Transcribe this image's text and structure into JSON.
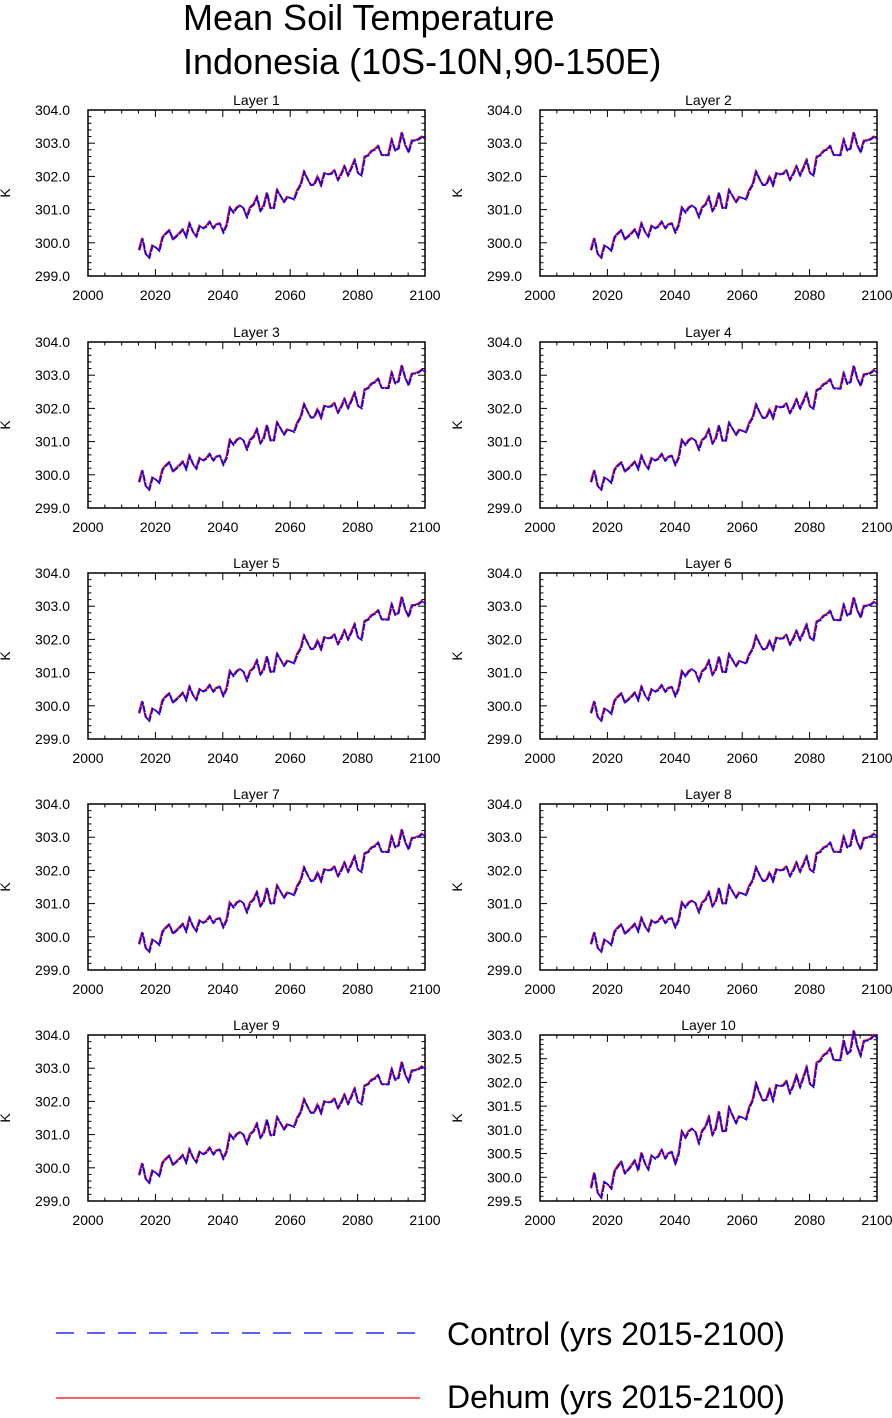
{
  "title": {
    "line1": "Mean Soil Temperature",
    "line2": "Indonesia (10S-10N,90-150E)"
  },
  "legend": {
    "control_label": "Control (yrs 2015-2100)",
    "dehum_label": "Dehum (yrs 2015-2100)",
    "control_color": "#0000ff",
    "dehum_color": "#ff0000"
  },
  "chart_data": [
    {
      "type": "line",
      "title": "Layer 1",
      "ylabel": "K",
      "xlim": [
        2000,
        2100
      ],
      "ylim": [
        299.0,
        304.0
      ],
      "yticks": [
        "299.0",
        "300.0",
        "301.0",
        "302.0",
        "303.0",
        "304.0"
      ],
      "xticks": [
        "2000",
        "2020",
        "2040",
        "2060",
        "2080",
        "2100"
      ],
      "x_start": 2015,
      "x_end": 2100,
      "y_start": 299.7,
      "y_end": 303.15
    },
    {
      "type": "line",
      "title": "Layer 2",
      "ylabel": "K",
      "xlim": [
        2000,
        2100
      ],
      "ylim": [
        299.0,
        304.0
      ],
      "yticks": [
        "299.0",
        "300.0",
        "301.0",
        "302.0",
        "303.0",
        "304.0"
      ],
      "xticks": [
        "2000",
        "2020",
        "2040",
        "2060",
        "2080",
        "2100"
      ],
      "x_start": 2015,
      "x_end": 2100,
      "y_start": 299.7,
      "y_end": 303.15
    },
    {
      "type": "line",
      "title": "Layer 3",
      "ylabel": "K",
      "xlim": [
        2000,
        2100
      ],
      "ylim": [
        299.0,
        304.0
      ],
      "yticks": [
        "299.0",
        "300.0",
        "301.0",
        "302.0",
        "303.0",
        "304.0"
      ],
      "xticks": [
        "2000",
        "2020",
        "2040",
        "2060",
        "2080",
        "2100"
      ],
      "x_start": 2015,
      "x_end": 2100,
      "y_start": 299.7,
      "y_end": 303.12
    },
    {
      "type": "line",
      "title": "Layer 4",
      "ylabel": "K",
      "xlim": [
        2000,
        2100
      ],
      "ylim": [
        299.0,
        304.0
      ],
      "yticks": [
        "299.0",
        "300.0",
        "301.0",
        "302.0",
        "303.0",
        "304.0"
      ],
      "xticks": [
        "2000",
        "2020",
        "2040",
        "2060",
        "2080",
        "2100"
      ],
      "x_start": 2015,
      "x_end": 2100,
      "y_start": 299.7,
      "y_end": 303.1
    },
    {
      "type": "line",
      "title": "Layer 5",
      "ylabel": "K",
      "xlim": [
        2000,
        2100
      ],
      "ylim": [
        299.0,
        304.0
      ],
      "yticks": [
        "299.0",
        "300.0",
        "301.0",
        "302.0",
        "303.0",
        "304.0"
      ],
      "xticks": [
        "2000",
        "2020",
        "2040",
        "2060",
        "2080",
        "2100"
      ],
      "x_start": 2015,
      "x_end": 2100,
      "y_start": 299.7,
      "y_end": 303.1
    },
    {
      "type": "line",
      "title": "Layer 6",
      "ylabel": "K",
      "xlim": [
        2000,
        2100
      ],
      "ylim": [
        299.0,
        304.0
      ],
      "yticks": [
        "299.0",
        "300.0",
        "301.0",
        "302.0",
        "303.0",
        "304.0"
      ],
      "xticks": [
        "2000",
        "2020",
        "2040",
        "2060",
        "2080",
        "2100"
      ],
      "x_start": 2015,
      "x_end": 2100,
      "y_start": 299.7,
      "y_end": 303.08
    },
    {
      "type": "line",
      "title": "Layer 7",
      "ylabel": "K",
      "xlim": [
        2000,
        2100
      ],
      "ylim": [
        299.0,
        304.0
      ],
      "yticks": [
        "299.0",
        "300.0",
        "301.0",
        "302.0",
        "303.0",
        "304.0"
      ],
      "xticks": [
        "2000",
        "2020",
        "2040",
        "2060",
        "2080",
        "2100"
      ],
      "x_start": 2015,
      "x_end": 2100,
      "y_start": 299.7,
      "y_end": 303.05
    },
    {
      "type": "line",
      "title": "Layer 8",
      "ylabel": "K",
      "xlim": [
        2000,
        2100
      ],
      "ylim": [
        299.0,
        304.0
      ],
      "yticks": [
        "299.0",
        "300.0",
        "301.0",
        "302.0",
        "303.0",
        "304.0"
      ],
      "xticks": [
        "2000",
        "2020",
        "2040",
        "2060",
        "2080",
        "2100"
      ],
      "x_start": 2015,
      "x_end": 2100,
      "y_start": 299.7,
      "y_end": 303.05
    },
    {
      "type": "line",
      "title": "Layer 9",
      "ylabel": "K",
      "xlim": [
        2000,
        2100
      ],
      "ylim": [
        299.0,
        304.0
      ],
      "yticks": [
        "299.0",
        "300.0",
        "301.0",
        "302.0",
        "303.0",
        "304.0"
      ],
      "xticks": [
        "2000",
        "2020",
        "2040",
        "2060",
        "2080",
        "2100"
      ],
      "x_start": 2015,
      "x_end": 2100,
      "y_start": 299.7,
      "y_end": 303.0
    },
    {
      "type": "line",
      "title": "Layer 10",
      "ylabel": "K",
      "xlim": [
        2000,
        2100
      ],
      "ylim": [
        299.5,
        303.0
      ],
      "yticks": [
        "299.5",
        "300.0",
        "300.5",
        "301.0",
        "301.5",
        "302.0",
        "302.5",
        "303.0"
      ],
      "xticks": [
        "2000",
        "2020",
        "2040",
        "2060",
        "2080",
        "2100"
      ],
      "x_start": 2015,
      "x_end": 2100,
      "y_start": 299.7,
      "y_end": 302.95
    }
  ]
}
